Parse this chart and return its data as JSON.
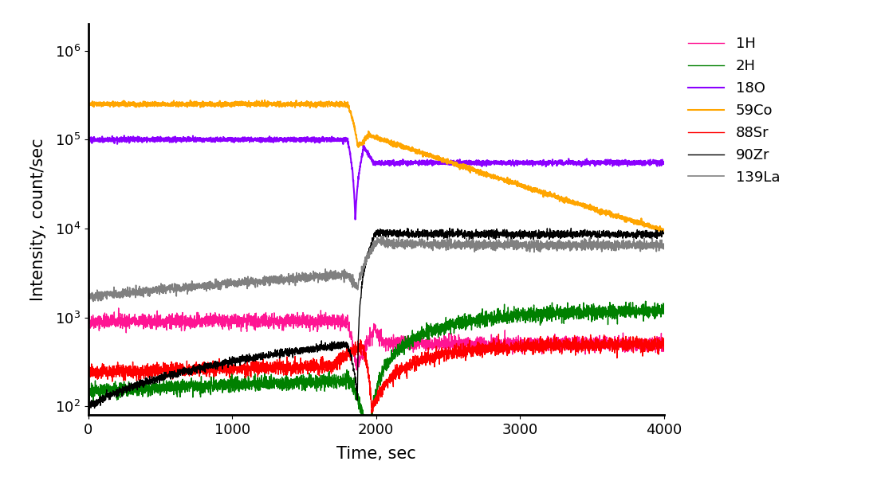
{
  "title": "",
  "xlabel": "Time, sec",
  "ylabel": "Intensity, count/sec",
  "xlim": [
    0,
    4000
  ],
  "ylim": [
    80,
    2000000
  ],
  "xticklabels": [
    "0",
    "1000",
    "2000",
    "3000",
    "4000"
  ],
  "xticks": [
    0,
    1000,
    2000,
    3000,
    4000
  ],
  "series": {
    "1H": {
      "color": "#FF1493",
      "lw": 1.0
    },
    "2H": {
      "color": "#008000",
      "lw": 1.0
    },
    "18O": {
      "color": "#8B00FF",
      "lw": 1.5
    },
    "59Co": {
      "color": "#FFA500",
      "lw": 1.5
    },
    "88Sr": {
      "color": "#FF0000",
      "lw": 1.0
    },
    "90Zr": {
      "color": "#000000",
      "lw": 1.0
    },
    "139La": {
      "color": "#808080",
      "lw": 1.2
    }
  },
  "legend_fontsize": 13,
  "axis_fontsize": 15,
  "tick_fontsize": 13,
  "background_color": "#FFFFFF"
}
